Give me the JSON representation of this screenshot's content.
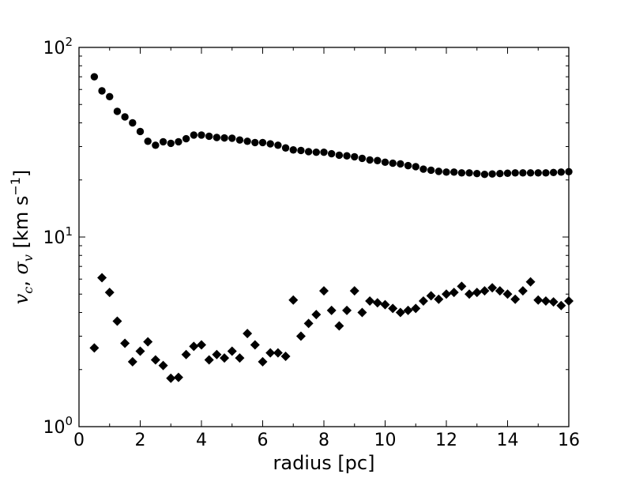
{
  "chart_data": {
    "type": "scatter",
    "xlabel": "radius [pc]",
    "ylabel": "v_c, σ_v [km s^-1]",
    "xlim": [
      0,
      16
    ],
    "ylim": [
      1,
      100
    ],
    "yscale": "log",
    "grid": false,
    "x_ticks": [
      "0",
      "2",
      "4",
      "6",
      "8",
      "10",
      "12",
      "14",
      "16"
    ],
    "y_ticks": [
      {
        "base": "10",
        "exp": "0"
      },
      {
        "base": "10",
        "exp": "1"
      },
      {
        "base": "10",
        "exp": "2"
      }
    ],
    "series": [
      {
        "marker": "circle",
        "color": "#000000",
        "x": [
          0.5,
          0.75,
          1.0,
          1.25,
          1.5,
          1.75,
          2.0,
          2.25,
          2.5,
          2.75,
          3.0,
          3.25,
          3.5,
          3.75,
          4.0,
          4.25,
          4.5,
          4.75,
          5.0,
          5.25,
          5.5,
          5.75,
          6.0,
          6.25,
          6.5,
          6.75,
          7.0,
          7.25,
          7.5,
          7.75,
          8.0,
          8.25,
          8.5,
          8.75,
          9.0,
          9.25,
          9.5,
          9.75,
          10.0,
          10.25,
          10.5,
          10.75,
          11.0,
          11.25,
          11.5,
          11.75,
          12.0,
          12.25,
          12.5,
          12.75,
          13.0,
          13.25,
          13.5,
          13.75,
          14.0,
          14.25,
          14.5,
          14.75,
          15.0,
          15.25,
          15.5,
          15.75,
          16.0
        ],
        "y": [
          70,
          59,
          55,
          46,
          43,
          40,
          36,
          32,
          30.5,
          31.8,
          31.2,
          31.8,
          33,
          34.5,
          34.5,
          34,
          33.5,
          33.3,
          33.2,
          32.5,
          32,
          31.5,
          31.5,
          31,
          30.5,
          29.5,
          28.8,
          28.6,
          28.2,
          28,
          28,
          27.5,
          27,
          26.8,
          26.5,
          26,
          25.5,
          25.3,
          24.8,
          24.5,
          24.3,
          23.8,
          23.5,
          22.8,
          22.5,
          22.2,
          22,
          22,
          21.8,
          21.8,
          21.6,
          21.4,
          21.5,
          21.6,
          21.7,
          21.8,
          21.8,
          21.8,
          21.8,
          21.8,
          21.9,
          22,
          22.1
        ]
      },
      {
        "marker": "diamond",
        "color": "#000000",
        "x": [
          0.5,
          0.75,
          1.0,
          1.25,
          1.5,
          1.75,
          2.0,
          2.25,
          2.5,
          2.75,
          3.0,
          3.25,
          3.5,
          3.75,
          4.0,
          4.25,
          4.5,
          4.75,
          5.0,
          5.25,
          5.5,
          5.75,
          6.0,
          6.25,
          6.5,
          6.75,
          7.0,
          7.25,
          7.5,
          7.75,
          8.0,
          8.25,
          8.5,
          8.75,
          9.0,
          9.25,
          9.5,
          9.75,
          10.0,
          10.25,
          10.5,
          10.75,
          11.0,
          11.25,
          11.5,
          11.75,
          12.0,
          12.25,
          12.5,
          12.75,
          13.0,
          13.25,
          13.5,
          13.75,
          14.0,
          14.25,
          14.5,
          14.75,
          15.0,
          15.25,
          15.5,
          15.75,
          16.0
        ],
        "y": [
          2.6,
          6.1,
          5.1,
          3.6,
          2.75,
          2.2,
          2.5,
          2.8,
          2.25,
          2.1,
          1.8,
          1.82,
          2.4,
          2.65,
          2.7,
          2.25,
          2.4,
          2.3,
          2.5,
          2.3,
          3.1,
          2.7,
          2.2,
          2.45,
          2.45,
          2.35,
          4.65,
          3.0,
          3.5,
          3.9,
          5.2,
          4.1,
          3.4,
          4.1,
          5.2,
          4.0,
          4.6,
          4.5,
          4.4,
          4.2,
          4.0,
          4.1,
          4.2,
          4.6,
          4.9,
          4.7,
          5.0,
          5.1,
          5.5,
          5.0,
          5.1,
          5.2,
          5.4,
          5.2,
          5.0,
          4.7,
          5.2,
          5.8,
          4.65,
          4.6,
          4.55,
          4.35,
          4.6
        ]
      }
    ]
  }
}
